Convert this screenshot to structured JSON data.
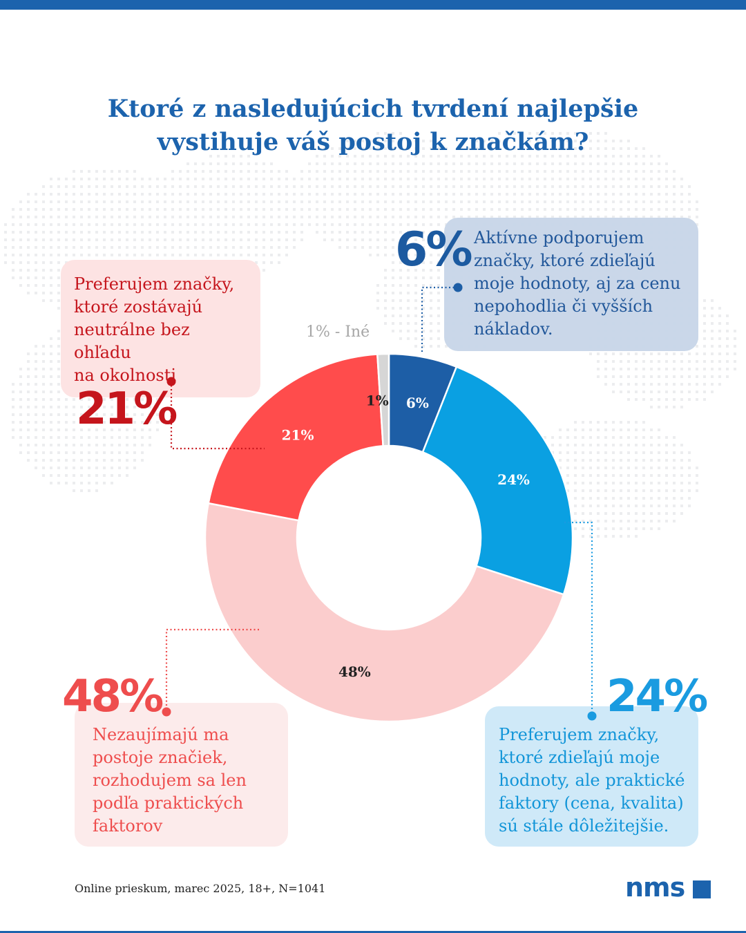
{
  "title": {
    "line1": "Ktoré z nasledujúcich tvrdení najlepšie",
    "line2": "vystihuje váš postoj k značkám?"
  },
  "colors": {
    "brand": "#1c63ad",
    "dark_red": "#c5151c",
    "red": "#ff4c4c",
    "light_red": "#fbcdcd",
    "dark_blue": "#1d5ea6",
    "blue": "#0aa0e2",
    "grey": "#d6d6d6"
  },
  "chart_data": {
    "type": "pie",
    "variant": "donut",
    "title": "Ktoré z nasledujúcich tvrdení najlepšie vystihuje váš postoj k značkám?",
    "slices": [
      {
        "key": "s6",
        "label": "6%",
        "value": 6,
        "color": "#1d5ea6",
        "text_color": "#ffffff",
        "description": "Aktívne podporujem značky, ktoré zdieľajú moje hodnoty, aj za cenu nepohodlia či vyšších nákladov."
      },
      {
        "key": "s24",
        "label": "24%",
        "value": 24,
        "color": "#0aa0e2",
        "text_color": "#ffffff",
        "description": "Preferujem značky, ktoré zdieľajú moje hodnoty, ale praktické faktory (cena, kvalita) sú stále dôležitejšie."
      },
      {
        "key": "s48",
        "label": "48%",
        "value": 48,
        "color": "#fbcdcd",
        "text_color": "#222222",
        "description": "Nezaujímajú ma postoje značiek, rozhodujem sa len podľa praktických faktorov"
      },
      {
        "key": "s21",
        "label": "21%",
        "value": 21,
        "color": "#ff4c4c",
        "text_color": "#ffffff",
        "description": "Preferujem značky, ktoré zostávajú neutrálne bez ohľadu na okolnosti"
      },
      {
        "key": "s1",
        "label": "1%",
        "value": 1,
        "color": "#d6d6d6",
        "text_color": "#222222",
        "description": "Iné"
      }
    ]
  },
  "callouts": {
    "s21": {
      "value": "21%",
      "lines": [
        "Preferujem značky,",
        "ktoré zostávajú",
        "neutrálne bez ohľadu",
        "na okolnosti"
      ]
    },
    "s6": {
      "value": "6%",
      "lines": [
        "Aktívne podporujem",
        "značky, ktoré zdieľajú",
        "moje  hodnoty, aj za cenu",
        "nepohodlia či vyšších",
        "nákladov."
      ]
    },
    "s48": {
      "value": "48%",
      "lines": [
        "Nezaujímajú ma",
        "postoje značiek,",
        "rozhodujem sa len",
        "podľa praktických",
        "faktorov"
      ]
    },
    "s24": {
      "value": "24%",
      "lines": [
        "Preferujem značky,",
        "ktoré zdieľajú moje",
        "hodnoty, ale praktické",
        "faktory (cena, kvalita)",
        "sú stále dôležitejšie."
      ]
    }
  },
  "other_label": "1% - Iné",
  "footer": {
    "note": "Online prieskum, marec 2025, 18+, N=1041",
    "logo": "nms"
  }
}
